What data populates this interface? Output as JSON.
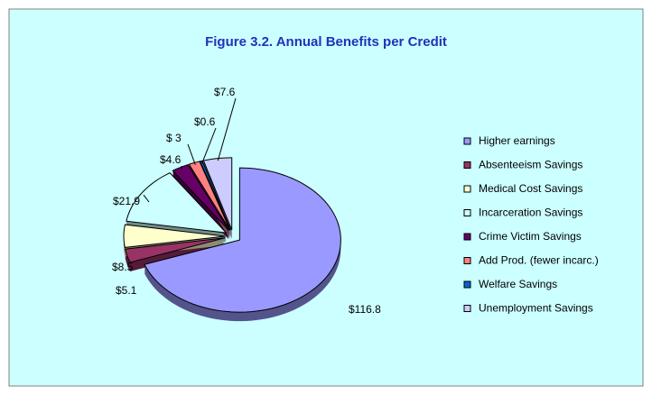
{
  "chart_data": {
    "type": "pie3d",
    "title": "Figure 3.2. Annual Benefits per Credit",
    "categories": [
      "Higher earnings",
      "Absenteeism Savings",
      "Medical Cost Savings",
      "Incarceration Savings",
      "Crime Victim Savings",
      "Add Prod. (fewer incarc.)",
      "Welfare Savings",
      "Unemployment Savings"
    ],
    "values": [
      116.8,
      5.1,
      8.5,
      21.9,
      4.6,
      3,
      0.6,
      7.6
    ],
    "value_labels": [
      "$116.8",
      "$5.1",
      "$8.5",
      "$21.9",
      "$4.6",
      "$ 3",
      "$0.6",
      "$7.6"
    ],
    "colors": [
      "#9999ff",
      "#993366",
      "#ffffcc",
      "#ccffff",
      "#660066",
      "#ff8080",
      "#0066cc",
      "#ccccff"
    ]
  }
}
